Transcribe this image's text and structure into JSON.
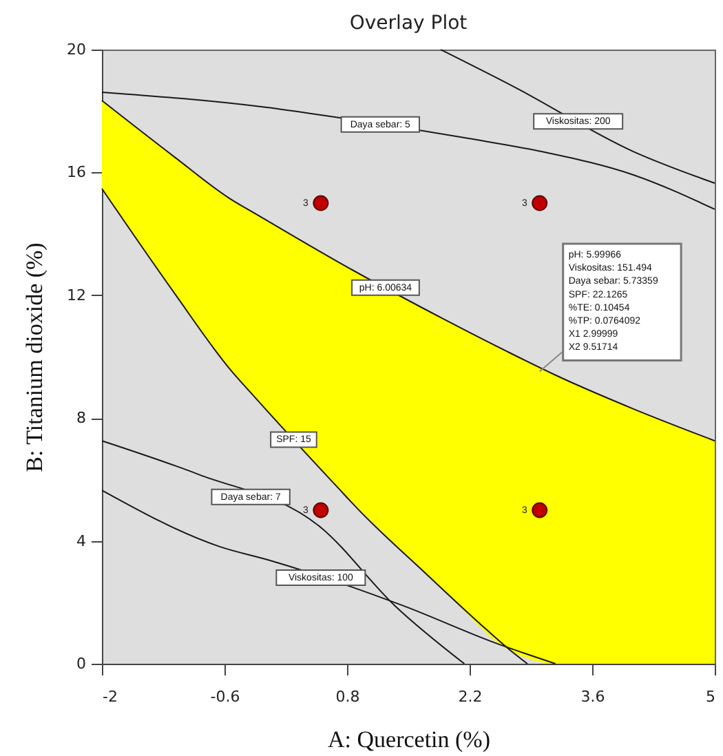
{
  "chart_data": {
    "type": "line",
    "title": "Overlay Plot",
    "xlabel": "A: Quercetin (%)",
    "ylabel": "B: Titanium dioxide (%)",
    "xlim": [
      -2,
      5
    ],
    "xticks": [
      -2,
      -0.6,
      0.8,
      2.2,
      3.6,
      5
    ],
    "ylim": [
      0,
      20
    ],
    "yticks": [
      0,
      4,
      8,
      12,
      16,
      20
    ],
    "grid": false,
    "marker": "none",
    "line_style": "solid",
    "series": [
      {
        "color": "#1a1a1a",
        "x": [
          -2,
          -0.13,
          0.5,
          2.2,
          3.02,
          4.07,
          5
        ],
        "values": [
          18.61,
          18.12,
          17.87,
          17.1,
          16.68,
          15.92,
          14.8
        ]
      },
      {
        "color": "#1a1a1a",
        "x": [
          1.87,
          2.7,
          4.07,
          5
        ],
        "values": [
          20,
          18.8,
          16.68,
          15.65
        ]
      },
      {
        "color": "#1a1a1a",
        "x": [
          -2,
          -1.17,
          -0.54,
          -0.25,
          0.7,
          1.9,
          2.62,
          3.18,
          4.07,
          5
        ],
        "values": [
          18.34,
          16.5,
          15.15,
          14.66,
          13.08,
          11.23,
          10.18,
          9.4,
          8.3,
          7.26
        ],
        "upper": [
          18.34,
          16.5,
          15.15,
          14.66,
          13.08,
          11.23,
          10.18,
          9.4,
          8.3,
          7.26
        ],
        "lower": [
          15.47,
          12.06,
          9.6,
          8.67,
          5.72,
          2.41,
          0.5,
          0,
          0,
          0
        ]
      },
      {
        "color": "#1a1a1a",
        "x": [
          -2,
          -1.17,
          -0.54,
          -0.25,
          0.7,
          0.93,
          1.71,
          2.39,
          2.66,
          2.86
        ],
        "values": [
          15.47,
          12.06,
          9.6,
          8.67,
          5.72,
          5.02,
          2.91,
          1.12,
          0.45,
          0
        ]
      },
      {
        "color": "#1a1a1a",
        "x": [
          -2,
          -0.9,
          0.5,
          1.35,
          2.14
        ],
        "values": [
          7.26,
          6.17,
          4.44,
          1.88,
          0
        ]
      },
      {
        "color": "#1a1a1a",
        "x": [
          -2,
          -0.65,
          -0.1,
          1.45,
          2.5,
          3.18
        ],
        "values": [
          5.65,
          3.81,
          3.38,
          1.88,
          0.67,
          0
        ]
      },
      {
        "type": "scatter",
        "color": "#c00000",
        "marker": "circle",
        "x": [
          0.5,
          3,
          0.5,
          3
        ],
        "values": [
          15,
          15,
          5,
          5
        ]
      }
    ],
    "annotations": [
      {
        "text": "Daya sebar: 5",
        "x": 1.18,
        "y": 17.56
      },
      {
        "text": "Viskositas: 200",
        "x": 3.44,
        "y": 17.66
      },
      {
        "text": "pH: 6.00634",
        "x": 1.24,
        "y": 12.25
      },
      {
        "text": "SPF: 15",
        "x": 0.19,
        "y": 7.3
      },
      {
        "text": "Daya sebar: 7",
        "x": -0.3,
        "y": 5.43
      },
      {
        "text": "Viskositas: 100",
        "x": 0.5,
        "y": 2.8
      },
      {
        "text": "3",
        "x": 0.5,
        "y": 15
      },
      {
        "text": "3",
        "x": 3,
        "y": 15
      },
      {
        "text": "3",
        "x": 0.5,
        "y": 5
      },
      {
        "text": "3",
        "x": 3,
        "y": 5
      },
      {
        "text": "pH:   5.99966\nViskositas:   151.494\nDaya sebar:   5.73359\nSPF:   22.1265\n%TE:   0.10454\n%TP:   0.0764092\nX1   2.99999\nX2   9.51714",
        "x": 3,
        "y": 9.51714
      }
    ]
  }
}
